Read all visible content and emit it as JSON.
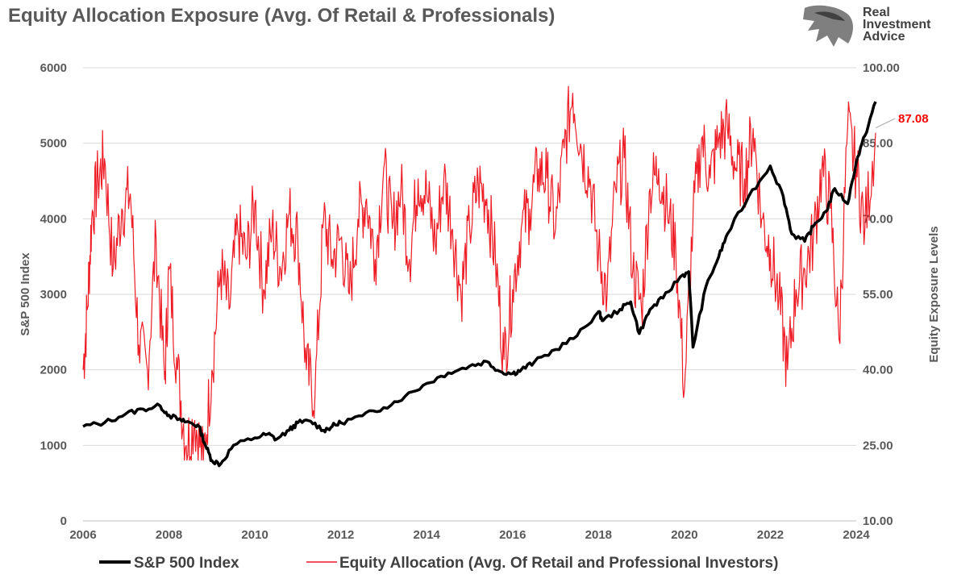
{
  "title": "Equity Allocation Exposure (Avg. Of Retail & Professionals)",
  "logo": {
    "line1": "Real",
    "line2": "Investment",
    "line3": "Advice",
    "icon": "eagle-head-icon"
  },
  "colors": {
    "sp500": "#000000",
    "equity": "#ee1c25",
    "grid": "#d9d9d9",
    "text": "#595959",
    "callout": "#ff0000"
  },
  "callout_label": "87.08",
  "chart_data": {
    "type": "line",
    "title": "Equity Allocation Exposure (Avg. Of Retail & Professionals)",
    "xlabel": "",
    "x_ticks": [
      "2006",
      "2008",
      "2010",
      "2012",
      "2014",
      "2016",
      "2018",
      "2020",
      "2022",
      "2024"
    ],
    "xlim": [
      2006,
      2024
    ],
    "y_left": {
      "label": "S&P 500 Index",
      "ticks": [
        "0",
        "1000",
        "2000",
        "3000",
        "4000",
        "5000",
        "6000"
      ],
      "ylim": [
        0,
        6000
      ]
    },
    "y_right": {
      "label": "Equity Exposure Levels",
      "ticks": [
        "10.00",
        "25.00",
        "40.00",
        "55.00",
        "70.00",
        "85.00",
        "100.00"
      ],
      "ylim": [
        10,
        100
      ]
    },
    "grid": true,
    "legend": "bottom",
    "annotation": {
      "text": "87.08",
      "series": "Equity Allocation (Avg. Of Retail and Professional Investors)"
    },
    "series": [
      {
        "name": "S&P 500 Index",
        "axis": "left",
        "x": [
          2006.0,
          2006.5,
          2007.0,
          2007.4,
          2007.8,
          2008.0,
          2008.3,
          2008.5,
          2008.7,
          2008.85,
          2009.0,
          2009.2,
          2009.5,
          2010.0,
          2010.3,
          2010.5,
          2010.8,
          2011.0,
          2011.3,
          2011.6,
          2011.8,
          2012.0,
          2012.5,
          2013.0,
          2013.5,
          2014.0,
          2014.5,
          2015.0,
          2015.4,
          2015.7,
          2016.0,
          2016.2,
          2016.5,
          2017.0,
          2017.5,
          2018.0,
          2018.1,
          2018.5,
          2018.75,
          2018.95,
          2019.2,
          2019.5,
          2019.9,
          2020.1,
          2020.2,
          2020.5,
          2020.8,
          2021.0,
          2021.5,
          2022.0,
          2022.3,
          2022.5,
          2022.8,
          2023.0,
          2023.3,
          2023.5,
          2023.8,
          2024.0,
          2024.2,
          2024.45
        ],
        "y": [
          1250,
          1300,
          1420,
          1480,
          1520,
          1400,
          1320,
          1300,
          1250,
          1000,
          800,
          750,
          1000,
          1100,
          1150,
          1080,
          1200,
          1300,
          1320,
          1200,
          1250,
          1300,
          1390,
          1500,
          1650,
          1820,
          1960,
          2050,
          2110,
          1980,
          1950,
          2000,
          2100,
          2270,
          2450,
          2770,
          2650,
          2800,
          2900,
          2480,
          2800,
          2950,
          3230,
          3300,
          2300,
          3100,
          3500,
          3800,
          4300,
          4700,
          4300,
          3800,
          3700,
          3900,
          4100,
          4400,
          4200,
          4750,
          5100,
          5550
        ]
      },
      {
        "name": "Equity Allocation (Avg. Of Retail and Professional Investors)",
        "axis": "right",
        "x": [
          2006.0,
          2006.1,
          2006.2,
          2006.35,
          2006.5,
          2006.7,
          2006.9,
          2007.1,
          2007.3,
          2007.5,
          2007.7,
          2007.9,
          2008.0,
          2008.2,
          2008.4,
          2008.6,
          2008.8,
          2009.0,
          2009.2,
          2009.4,
          2009.6,
          2009.8,
          2010.0,
          2010.2,
          2010.4,
          2010.6,
          2010.8,
          2011.0,
          2011.2,
          2011.4,
          2011.6,
          2011.8,
          2012.0,
          2012.2,
          2012.4,
          2012.6,
          2012.8,
          2013.0,
          2013.2,
          2013.4,
          2013.6,
          2013.8,
          2014.0,
          2014.2,
          2014.4,
          2014.6,
          2014.8,
          2015.0,
          2015.2,
          2015.4,
          2015.6,
          2015.8,
          2016.0,
          2016.2,
          2016.4,
          2016.6,
          2016.8,
          2017.0,
          2017.2,
          2017.4,
          2017.6,
          2017.8,
          2018.0,
          2018.2,
          2018.4,
          2018.6,
          2018.8,
          2019.0,
          2019.2,
          2019.4,
          2019.6,
          2019.8,
          2020.0,
          2020.2,
          2020.4,
          2020.6,
          2020.8,
          2021.0,
          2021.2,
          2021.4,
          2021.6,
          2021.8,
          2022.0,
          2022.2,
          2022.4,
          2022.6,
          2022.8,
          2023.0,
          2023.2,
          2023.4,
          2023.6,
          2023.8,
          2024.0,
          2024.2,
          2024.45
        ],
        "y": [
          40,
          52,
          70,
          78,
          82,
          60,
          72,
          75,
          45,
          40,
          66,
          38,
          60,
          40,
          25,
          30,
          22,
          40,
          60,
          52,
          68,
          62,
          73,
          56,
          68,
          60,
          71,
          66,
          40,
          35,
          70,
          62,
          66,
          55,
          70,
          74,
          62,
          80,
          68,
          76,
          62,
          78,
          75,
          65,
          78,
          68,
          55,
          68,
          77,
          74,
          62,
          42,
          56,
          68,
          72,
          80,
          78,
          68,
          84,
          95,
          84,
          78,
          63,
          55,
          76,
          82,
          60,
          52,
          76,
          80,
          72,
          64,
          36,
          70,
          86,
          78,
          86,
          88,
          80,
          78,
          88,
          70,
          64,
          54,
          40,
          56,
          60,
          66,
          80,
          72,
          46,
          88,
          80,
          68,
          87.08
        ]
      }
    ]
  },
  "legend": {
    "sp500": "S&P 500 Index",
    "equity": "Equity Allocation (Avg. Of Retail and Professional Investors)"
  }
}
